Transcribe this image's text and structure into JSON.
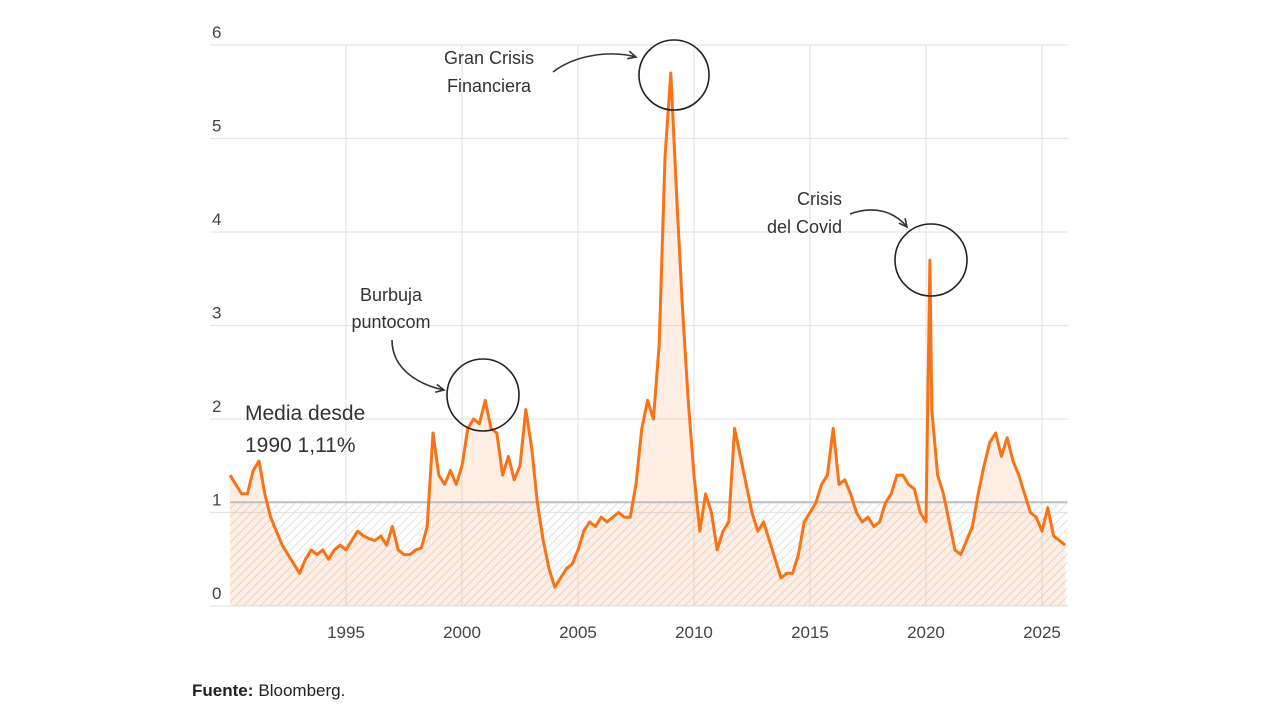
{
  "chart_data": {
    "type": "line",
    "x": [
      1990.0,
      1990.25,
      1990.5,
      1990.75,
      1991.0,
      1991.25,
      1991.5,
      1991.75,
      1992.0,
      1992.25,
      1992.5,
      1992.75,
      1993.0,
      1993.25,
      1993.5,
      1993.75,
      1994.0,
      1994.25,
      1994.5,
      1994.75,
      1995.0,
      1995.25,
      1995.5,
      1995.75,
      1996.0,
      1996.25,
      1996.5,
      1996.75,
      1997.0,
      1997.25,
      1997.5,
      1997.75,
      1998.0,
      1998.25,
      1998.5,
      1998.75,
      1999.0,
      1999.25,
      1999.5,
      1999.75,
      2000.0,
      2000.25,
      2000.5,
      2000.75,
      2001.0,
      2001.25,
      2001.5,
      2001.75,
      2002.0,
      2002.25,
      2002.5,
      2002.75,
      2003.0,
      2003.25,
      2003.5,
      2003.75,
      2004.0,
      2004.25,
      2004.5,
      2004.75,
      2005.0,
      2005.25,
      2005.5,
      2005.75,
      2006.0,
      2006.25,
      2006.5,
      2006.75,
      2007.0,
      2007.25,
      2007.5,
      2007.75,
      2008.0,
      2008.25,
      2008.5,
      2008.75,
      2009.0,
      2009.25,
      2009.5,
      2009.75,
      2010.0,
      2010.25,
      2010.5,
      2010.75,
      2011.0,
      2011.25,
      2011.5,
      2011.75,
      2012.0,
      2012.25,
      2012.5,
      2012.75,
      2013.0,
      2013.25,
      2013.5,
      2013.75,
      2014.0,
      2014.25,
      2014.5,
      2014.75,
      2015.0,
      2015.25,
      2015.5,
      2015.75,
      2016.0,
      2016.25,
      2016.5,
      2016.75,
      2017.0,
      2017.25,
      2017.5,
      2017.75,
      2018.0,
      2018.25,
      2018.5,
      2018.75,
      2019.0,
      2019.25,
      2019.5,
      2019.75,
      2020.0,
      2020.17,
      2020.25,
      2020.5,
      2020.75,
      2021.0,
      2021.25,
      2021.5,
      2021.75,
      2022.0,
      2022.25,
      2022.5,
      2022.75,
      2023.0,
      2023.25,
      2023.5,
      2023.75,
      2024.0,
      2024.25,
      2024.5,
      2024.75,
      2025.0,
      2025.25,
      2025.5,
      2025.75,
      2026.0
    ],
    "series": [
      {
        "color": "#f97316",
        "values": [
          1.4,
          1.3,
          1.2,
          1.2,
          1.45,
          1.55,
          1.2,
          0.95,
          0.8,
          0.65,
          0.55,
          0.45,
          0.35,
          0.5,
          0.6,
          0.55,
          0.6,
          0.5,
          0.6,
          0.65,
          0.6,
          0.7,
          0.8,
          0.75,
          0.72,
          0.7,
          0.75,
          0.65,
          0.85,
          0.6,
          0.55,
          0.55,
          0.6,
          0.62,
          0.85,
          1.85,
          1.4,
          1.3,
          1.45,
          1.3,
          1.5,
          1.9,
          2.0,
          1.95,
          2.2,
          1.9,
          1.85,
          1.4,
          1.6,
          1.35,
          1.5,
          2.1,
          1.7,
          1.1,
          0.7,
          0.4,
          0.2,
          0.3,
          0.4,
          0.45,
          0.6,
          0.8,
          0.9,
          0.85,
          0.95,
          0.9,
          0.95,
          1.0,
          0.95,
          0.95,
          1.3,
          1.9,
          2.2,
          2.0,
          2.8,
          4.8,
          5.7,
          4.4,
          3.2,
          2.2,
          1.4,
          0.8,
          1.2,
          1.0,
          0.6,
          0.8,
          0.9,
          1.9,
          1.6,
          1.3,
          1.0,
          0.8,
          0.9,
          0.7,
          0.5,
          0.3,
          0.35,
          0.35,
          0.55,
          0.9,
          1.0,
          1.1,
          1.3,
          1.4,
          1.9,
          1.3,
          1.35,
          1.2,
          1.0,
          0.9,
          0.95,
          0.85,
          0.9,
          1.1,
          1.2,
          1.4,
          1.4,
          1.3,
          1.25,
          1.0,
          0.9,
          3.7,
          2.1,
          1.4,
          1.2,
          0.9,
          0.6,
          0.55,
          0.7,
          0.85,
          1.2,
          1.5,
          1.75,
          1.85,
          1.6,
          1.8,
          1.55,
          1.4,
          1.2,
          1.0,
          0.95,
          0.8,
          1.05,
          0.75,
          0.7,
          0.65
        ]
      }
    ],
    "mean": 1.11,
    "xlim": [
      1990,
      2026.1
    ],
    "xticks": [
      1995,
      2000,
      2005,
      2010,
      2015,
      2020,
      2025
    ],
    "ylim": [
      0,
      6
    ],
    "yticks": [
      0,
      1,
      2,
      3,
      4,
      5,
      6
    ],
    "grid": true,
    "annotations": [
      {
        "text": [
          "Media desde",
          "1990 1,11%"
        ]
      },
      {
        "text": [
          "Burbuja",
          "puntocom"
        ]
      },
      {
        "text": [
          "Gran Crisis",
          "Financiera"
        ]
      },
      {
        "text": [
          "Crisis",
          "del Covid"
        ]
      }
    ]
  },
  "source": {
    "label": "Fuente:",
    "text": "Bloomberg."
  }
}
